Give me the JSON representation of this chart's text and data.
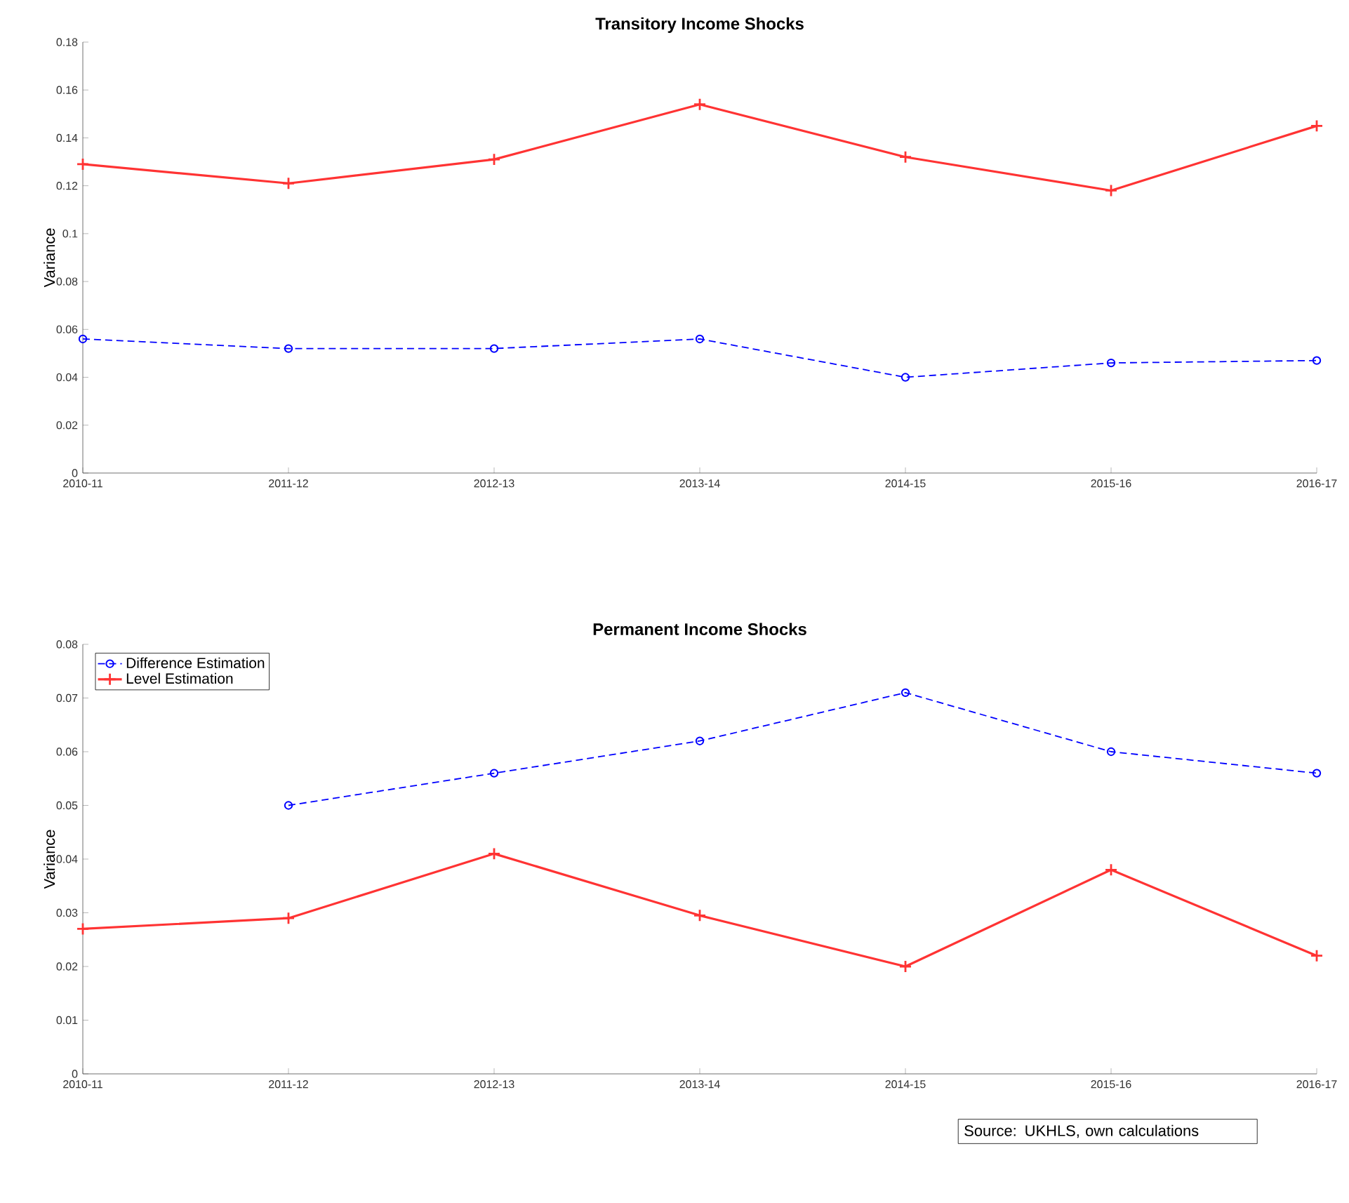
{
  "chart_data": [
    {
      "type": "line",
      "title": "Transitory Income Shocks",
      "ylabel": "Variance",
      "categories": [
        "2010-11",
        "2011-12",
        "2012-13",
        "2013-14",
        "2014-15",
        "2015-16",
        "2016-17"
      ],
      "series": [
        {
          "color": "#0000ff",
          "marker": "circle",
          "line_style": "dashed",
          "values": [
            0.056,
            0.052,
            0.052,
            0.056,
            0.04,
            0.046,
            0.047
          ]
        },
        {
          "color": "#ff3333",
          "marker": "cross",
          "line_style": "solid",
          "values": [
            0.129,
            0.121,
            0.131,
            0.154,
            0.132,
            0.118,
            0.145
          ]
        }
      ],
      "ylim": [
        0,
        0.18
      ],
      "yticks": [
        0,
        0.02,
        0.04,
        0.06,
        0.08,
        0.1,
        0.12,
        0.14,
        0.16,
        0.18
      ],
      "legend": false
    },
    {
      "type": "line",
      "title": "Permanent Income Shocks",
      "ylabel": "Variance",
      "categories": [
        "2010-11",
        "2011-12",
        "2012-13",
        "2013-14",
        "2014-15",
        "2015-16",
        "2016-17"
      ],
      "series": [
        {
          "name": "Difference Estimation",
          "color": "#0000ff",
          "marker": "circle",
          "line_style": "dashed",
          "values": [
            null,
            0.05,
            0.056,
            0.062,
            0.071,
            0.06,
            0.056
          ]
        },
        {
          "name": "Level Estimation",
          "color": "#ff3333",
          "marker": "cross",
          "line_style": "solid",
          "values": [
            0.027,
            0.029,
            0.041,
            0.0295,
            0.02,
            0.038,
            0.022
          ]
        }
      ],
      "ylim": [
        0,
        0.08
      ],
      "yticks": [
        0,
        0.01,
        0.02,
        0.03,
        0.04,
        0.05,
        0.06,
        0.07,
        0.08
      ],
      "legend": "top left",
      "annotations": [
        "Source: UKHLS, own calculations"
      ]
    }
  ]
}
